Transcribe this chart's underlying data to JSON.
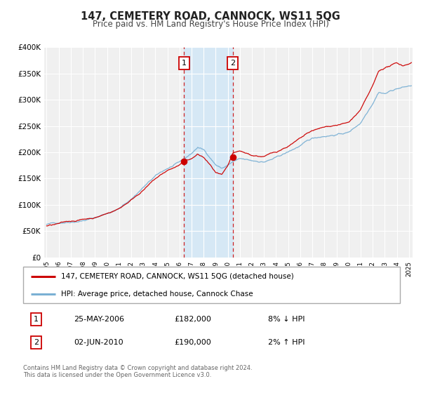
{
  "title": "147, CEMETERY ROAD, CANNOCK, WS11 5QG",
  "subtitle": "Price paid vs. HM Land Registry's House Price Index (HPI)",
  "legend_line1": "147, CEMETERY ROAD, CANNOCK, WS11 5QG (detached house)",
  "legend_line2": "HPI: Average price, detached house, Cannock Chase",
  "sale1_date_label": "25-MAY-2006",
  "sale1_price_label": "£182,000",
  "sale1_hpi_label": "8% ↓ HPI",
  "sale1_x": 2006.38,
  "sale1_y": 182000,
  "sale2_date_label": "02-JUN-2010",
  "sale2_price_label": "£190,000",
  "sale2_hpi_label": "2% ↑ HPI",
  "sale2_x": 2010.42,
  "sale2_y": 190000,
  "red_line_color": "#cc0000",
  "blue_line_color": "#7ab0d4",
  "shade_color": "#d6e8f5",
  "vline_color": "#cc0000",
  "dot_color": "#cc0000",
  "footer": "Contains HM Land Registry data © Crown copyright and database right 2024.\nThis data is licensed under the Open Government Licence v3.0.",
  "ylim": [
    0,
    400000
  ],
  "xlim_start": 1994.8,
  "xlim_end": 2025.3,
  "background_color": "#ffffff",
  "plot_bg_color": "#f0f0f0",
  "hpi_anchors_x": [
    1995.0,
    1996.0,
    1997.0,
    1998.0,
    1999.0,
    2000.0,
    2001.0,
    2002.0,
    2003.0,
    2004.0,
    2005.0,
    2006.0,
    2007.0,
    2007.5,
    2008.0,
    2008.5,
    2009.0,
    2009.5,
    2010.0,
    2010.5,
    2011.0,
    2012.0,
    2013.0,
    2014.0,
    2015.0,
    2016.0,
    2017.0,
    2018.0,
    2019.0,
    2020.0,
    2021.0,
    2022.0,
    2022.5,
    2023.0,
    2024.0,
    2025.2
  ],
  "hpi_anchors_y": [
    63000,
    66000,
    70000,
    74000,
    79000,
    88000,
    97000,
    115000,
    138000,
    158000,
    172000,
    182000,
    198000,
    210000,
    205000,
    192000,
    178000,
    171000,
    177000,
    184000,
    187000,
    182000,
    181000,
    188000,
    198000,
    210000,
    222000,
    228000,
    232000,
    236000,
    255000,
    295000,
    318000,
    315000,
    325000,
    330000
  ],
  "red_anchors_x": [
    1995.0,
    1996.0,
    1997.0,
    1998.0,
    1999.0,
    2000.0,
    2001.0,
    2002.0,
    2003.0,
    2004.0,
    2005.0,
    2006.0,
    2006.38,
    2007.0,
    2007.5,
    2008.0,
    2008.5,
    2009.0,
    2009.5,
    2010.0,
    2010.42,
    2011.0,
    2012.0,
    2013.0,
    2014.0,
    2015.0,
    2016.0,
    2017.0,
    2018.0,
    2019.0,
    2020.0,
    2021.0,
    2022.0,
    2022.5,
    2023.0,
    2024.0,
    2024.5,
    2025.2
  ],
  "red_anchors_y": [
    60000,
    63000,
    67000,
    71000,
    75000,
    83000,
    93000,
    110000,
    130000,
    150000,
    165000,
    175000,
    182000,
    186000,
    194000,
    188000,
    174000,
    158000,
    152000,
    166000,
    190000,
    192000,
    184000,
    182000,
    190000,
    202000,
    215000,
    228000,
    233000,
    238000,
    242000,
    265000,
    308000,
    335000,
    342000,
    350000,
    345000,
    352000
  ]
}
